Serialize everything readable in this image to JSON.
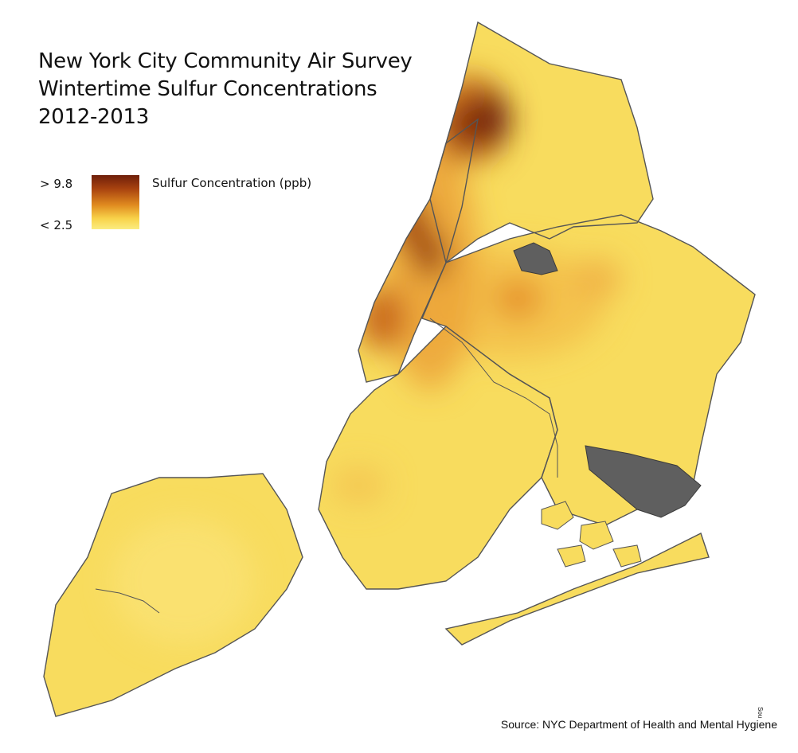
{
  "title_lines": [
    "New York City Community Air Survey",
    "Wintertime Sulfur Concentrations",
    "2012-2013"
  ],
  "legend": {
    "max_label": "> 9.8",
    "min_label": "< 2.5",
    "title": "Sulfur Concentration (ppb)",
    "color_high": "#6e1f0a",
    "color_low": "#fbec80"
  },
  "source": "Source: NYC Department of Health and Mental Hygiene",
  "side_mark": "Sou",
  "colors": {
    "land_base": "#f8dc5e",
    "water": "#ffffff",
    "coastline": "#555555",
    "airport_fill": "#5f5f5f"
  },
  "regions": [
    {
      "id": "staten-island",
      "name": "staten-island"
    },
    {
      "id": "brooklyn",
      "name": "brooklyn"
    },
    {
      "id": "queens",
      "name": "queens"
    },
    {
      "id": "manhattan",
      "name": "manhattan"
    },
    {
      "id": "bronx",
      "name": "bronx"
    },
    {
      "id": "rockaway",
      "name": "rockaway-peninsula"
    }
  ]
}
